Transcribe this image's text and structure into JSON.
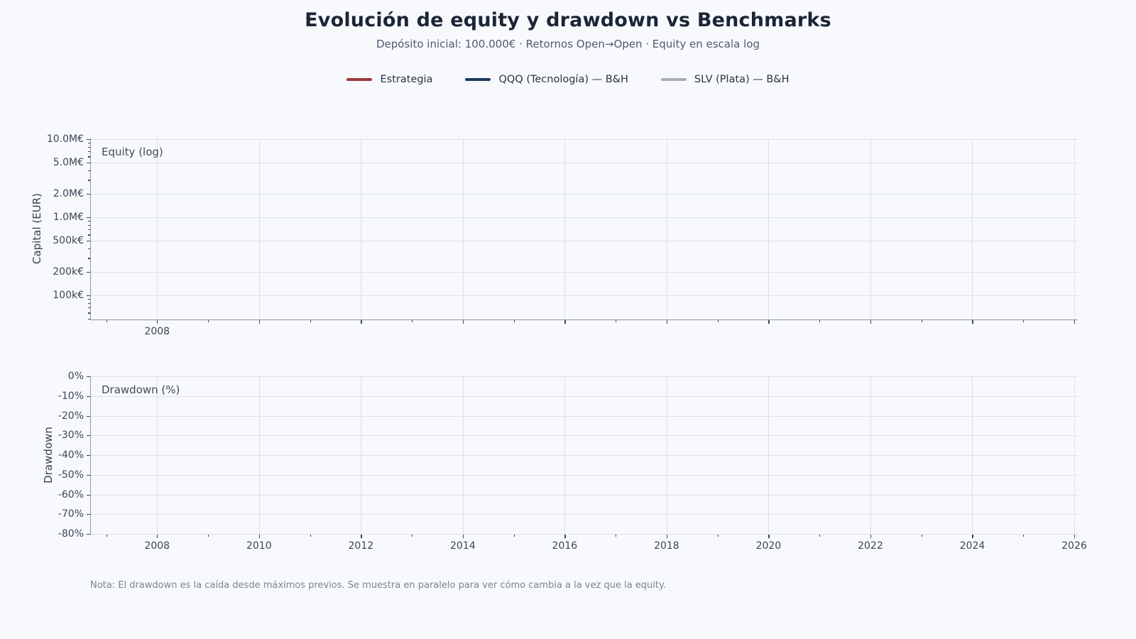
{
  "header": {
    "title": "Evolución de equity y drawdown vs Benchmarks",
    "subtitle": "Depósito inicial: 100.000€ · Retornos Open→Open · Equity en escala log"
  },
  "legend": {
    "items": [
      {
        "label": "Estrategia",
        "color": "#9a3a3e"
      },
      {
        "label": "QQQ (Tecnología) — B&H",
        "color": "#1d3a5f"
      },
      {
        "label": "SLV (Plata) — B&H",
        "color": "#a9aeb6"
      }
    ]
  },
  "colors": {
    "background": "#f7f9fc",
    "gridline": "#dde0e7",
    "spine": "#8e939c",
    "tick_text": "#3d4656",
    "title_text": "#1b2536",
    "subtitle_text": "#4d5a6e",
    "note_text": "#7b8595"
  },
  "chart_data": [
    {
      "type": "line",
      "panel_label": "Equity (log)",
      "ylabel": "Capital (EUR)",
      "yscale": "log",
      "ylim": [
        49000,
        10200000
      ],
      "xlim": [
        2006.7,
        2026.07
      ],
      "grid": true,
      "yticks": [
        {
          "value": 10000000,
          "label": "10.0M€"
        },
        {
          "value": 5000000,
          "label": "5.0M€"
        },
        {
          "value": 2000000,
          "label": "2.0M€"
        },
        {
          "value": 1000000,
          "label": "1.0M€"
        },
        {
          "value": 500000,
          "label": "500k€"
        },
        {
          "value": 200000,
          "label": "200k€"
        },
        {
          "value": 100000,
          "label": "100k€"
        }
      ],
      "yticks_minor": [
        9000000,
        8000000,
        7000000,
        6000000,
        4000000,
        3000000,
        900000,
        800000,
        700000,
        600000,
        400000,
        300000,
        90000,
        80000,
        70000,
        60000,
        50000
      ],
      "xgridlines": [
        2008,
        2010,
        2012,
        2014,
        2016,
        2018,
        2020,
        2022,
        2024,
        2026
      ],
      "xticks_major": [
        2008,
        2010,
        2012,
        2014,
        2016,
        2018,
        2020,
        2022,
        2024,
        2026
      ],
      "xticks_minor": [
        2007,
        2009,
        2011,
        2013,
        2015,
        2017,
        2019,
        2021,
        2023,
        2025
      ],
      "xtick_labels": [
        {
          "value": 2008,
          "label": "2008"
        }
      ],
      "series": [
        {
          "name": "Estrategia",
          "color": "#9a3a3e",
          "values": []
        },
        {
          "name": "QQQ (Tecnología) — B&H",
          "color": "#1d3a5f",
          "values": []
        },
        {
          "name": "SLV (Plata) — B&H",
          "color": "#a9aeb6",
          "values": []
        }
      ]
    },
    {
      "type": "line",
      "panel_label": "Drawdown (%)",
      "ylabel": "Drawdown",
      "yscale": "linear",
      "ylim": [
        -80,
        0
      ],
      "xlim": [
        2006.7,
        2026.07
      ],
      "grid": true,
      "yticks": [
        {
          "value": 0,
          "label": "0%"
        },
        {
          "value": -10,
          "label": "-10%"
        },
        {
          "value": -20,
          "label": "-20%"
        },
        {
          "value": -30,
          "label": "-30%"
        },
        {
          "value": -40,
          "label": "-40%"
        },
        {
          "value": -50,
          "label": "-50%"
        },
        {
          "value": -60,
          "label": "-60%"
        },
        {
          "value": -70,
          "label": "-70%"
        },
        {
          "value": -80,
          "label": "-80%"
        }
      ],
      "yticks_minor": [],
      "xgridlines": [
        2008,
        2010,
        2012,
        2014,
        2016,
        2018,
        2020,
        2022,
        2024,
        2026
      ],
      "xticks_major": [
        2008,
        2010,
        2012,
        2014,
        2016,
        2018,
        2020,
        2022,
        2024,
        2026
      ],
      "xticks_minor": [
        2007,
        2009,
        2011,
        2013,
        2015,
        2017,
        2019,
        2021,
        2023,
        2025
      ],
      "xtick_labels": [
        {
          "value": 2008,
          "label": "2008"
        },
        {
          "value": 2010,
          "label": "2010"
        },
        {
          "value": 2012,
          "label": "2012"
        },
        {
          "value": 2014,
          "label": "2014"
        },
        {
          "value": 2016,
          "label": "2016"
        },
        {
          "value": 2018,
          "label": "2018"
        },
        {
          "value": 2020,
          "label": "2020"
        },
        {
          "value": 2022,
          "label": "2022"
        },
        {
          "value": 2024,
          "label": "2024"
        },
        {
          "value": 2026,
          "label": "2026"
        }
      ],
      "series": []
    }
  ],
  "note": "Nota: El drawdown es la caída desde máximos previos. Se muestra en paralelo para ver cómo cambia a la vez que la equity."
}
